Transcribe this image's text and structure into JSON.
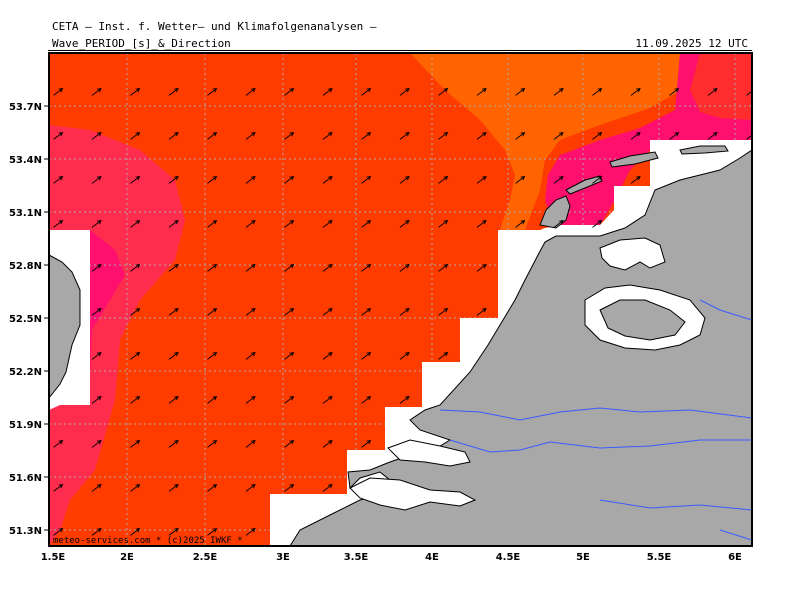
{
  "header": {
    "title": "CETA — Inst. f. Wetter— und Klimafolgenanalysen —",
    "subtitle": "Wave_PERIOD_[s]_&_Direction",
    "datetime": "11.09.2025 12 UTC"
  },
  "axes": {
    "lat_labels": [
      "53.7N",
      "53.4N",
      "53.1N",
      "52.8N",
      "52.5N",
      "52.2N",
      "51.9N",
      "51.6N",
      "51.3N"
    ],
    "lon_labels": [
      "1.5E",
      "2E",
      "2.5E",
      "3E",
      "3.5E",
      "4E",
      "4.5E",
      "5E",
      "5.5E",
      "6E"
    ]
  },
  "credit": "meteo-services.com * (c)2025 IWKF *",
  "colors": {
    "period_low": "#ff3c00",
    "period_mid": "#ff6400",
    "period_magenta": "#ff0f6e",
    "period_pink": "#ff2d4d",
    "land": "#a8a8a8",
    "grid": "#aaaaaa",
    "rivers": "#3b5bff",
    "arrows": "#000000"
  },
  "wave_direction": "north-east"
}
